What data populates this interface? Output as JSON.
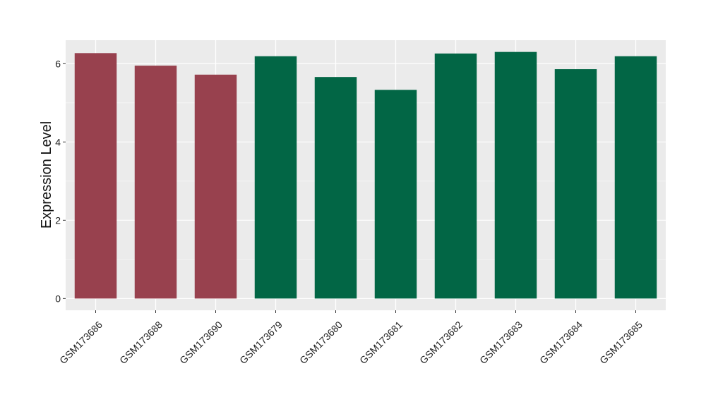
{
  "chart_data": {
    "type": "bar",
    "title": "",
    "xlabel": "",
    "ylabel": "Expression Level",
    "ylim": [
      -0.3,
      6.6
    ],
    "yticks": [
      0,
      2,
      4,
      6
    ],
    "grid": true,
    "panel_background": "#EBEBEB",
    "categories": [
      "GSM173686",
      "GSM173688",
      "GSM173690",
      "GSM173679",
      "GSM173680",
      "GSM173681",
      "GSM173682",
      "GSM173683",
      "GSM173684",
      "GSM173685"
    ],
    "values": [
      6.27,
      5.95,
      5.72,
      6.19,
      5.66,
      5.33,
      6.26,
      6.3,
      5.86,
      6.19
    ],
    "bar_colors": [
      "#98414E",
      "#98414E",
      "#98414E",
      "#026645",
      "#026645",
      "#026645",
      "#026645",
      "#026645",
      "#026645",
      "#026645"
    ]
  }
}
